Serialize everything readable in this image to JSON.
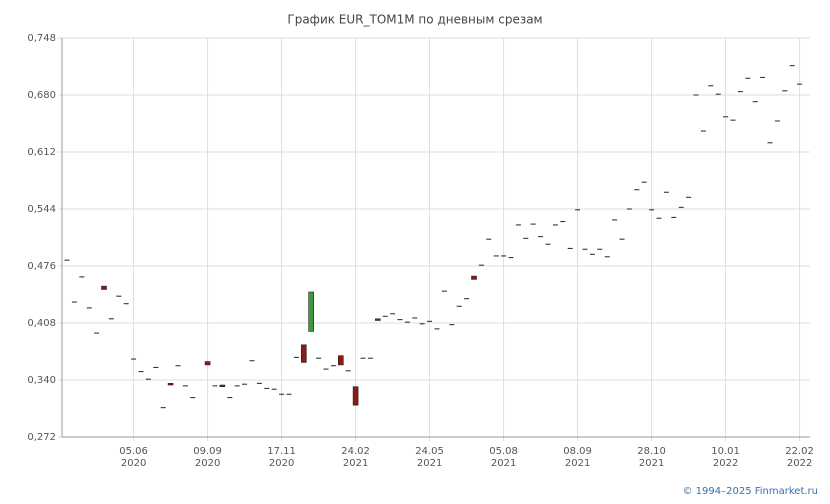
{
  "chart_data": {
    "type": "candlestick",
    "title": "График EUR_TOM1M по дневным срезам",
    "categories": [
      null,
      null,
      null,
      null,
      null,
      null,
      null,
      null,
      null,
      "05.06 2020",
      null,
      null,
      null,
      null,
      null,
      null,
      null,
      null,
      null,
      "09.09 2020",
      null,
      null,
      null,
      null,
      null,
      null,
      null,
      null,
      null,
      "17.11 2020",
      null,
      null,
      null,
      null,
      null,
      null,
      null,
      null,
      null,
      "24.02 2021",
      null,
      null,
      null,
      null,
      null,
      null,
      null,
      null,
      null,
      "24.05 2021",
      null,
      null,
      null,
      null,
      null,
      null,
      null,
      null,
      null,
      "05.08 2021",
      null,
      null,
      null,
      null,
      null,
      null,
      null,
      null,
      null,
      "08.09 2021",
      null,
      null,
      null,
      null,
      null,
      null,
      null,
      null,
      null,
      "28.10 2021",
      null,
      null,
      null,
      null,
      null,
      null,
      null,
      null,
      null,
      "10.01 2022",
      null,
      null,
      null,
      null,
      null,
      null,
      null,
      null,
      null,
      "22.02 2022"
    ],
    "open": [
      0.483,
      0.433,
      0.463,
      0.426,
      0.396,
      0.452,
      0.413,
      0.44,
      0.431,
      0.365,
      0.35,
      0.341,
      0.355,
      0.307,
      0.336,
      0.357,
      0.333,
      0.319,
      null,
      0.362,
      0.333,
      0.334,
      0.319,
      0.333,
      0.335,
      0.363,
      0.336,
      0.33,
      0.329,
      0.323,
      0.323,
      0.367,
      0.382,
      0.398,
      0.366,
      0.353,
      0.357,
      0.369,
      0.351,
      0.332,
      0.366,
      0.366,
      0.413,
      0.416,
      0.419,
      0.412,
      0.409,
      0.414,
      0.407,
      0.41,
      0.401,
      0.446,
      0.406,
      0.428,
      0.437,
      0.464,
      0.477,
      0.508,
      0.488,
      0.488,
      0.486,
      0.525,
      0.509,
      0.526,
      0.511,
      0.502,
      0.525,
      0.529,
      0.497,
      0.543,
      0.496,
      0.49,
      0.496,
      0.487,
      0.531,
      0.508,
      0.544,
      0.567,
      0.576,
      0.543,
      0.533,
      0.564,
      0.534,
      0.546,
      0.558,
      0.68,
      0.637,
      0.691,
      0.681,
      0.654,
      0.65,
      0.684,
      0.7,
      0.672,
      0.701,
      0.623,
      0.649,
      0.685,
      0.715,
      0.693
    ],
    "close": [
      0.483,
      0.433,
      0.463,
      0.426,
      0.396,
      0.448,
      0.413,
      0.44,
      0.431,
      0.365,
      0.35,
      0.341,
      0.355,
      0.307,
      0.334,
      0.357,
      0.333,
      0.319,
      null,
      0.358,
      0.333,
      0.332,
      0.319,
      0.333,
      0.335,
      0.363,
      0.336,
      0.33,
      0.329,
      0.323,
      0.323,
      0.367,
      0.361,
      0.445,
      0.366,
      0.353,
      0.357,
      0.358,
      0.351,
      0.31,
      0.366,
      0.366,
      0.411,
      0.416,
      0.419,
      0.412,
      0.409,
      0.414,
      0.407,
      0.41,
      0.401,
      0.446,
      0.406,
      0.428,
      0.437,
      0.46,
      0.477,
      0.508,
      0.488,
      0.488,
      0.486,
      0.525,
      0.509,
      0.526,
      0.511,
      0.502,
      0.525,
      0.529,
      0.497,
      0.543,
      0.496,
      0.49,
      0.496,
      0.487,
      0.531,
      0.508,
      0.544,
      0.567,
      0.576,
      0.543,
      0.533,
      0.564,
      0.534,
      0.546,
      0.558,
      0.68,
      0.637,
      0.691,
      0.681,
      0.654,
      0.65,
      0.684,
      0.7,
      0.672,
      0.701,
      0.623,
      0.649,
      0.685,
      0.715,
      0.693
    ],
    "up_color": "#3a9a3a",
    "down_color": "#8b1a1a",
    "ylim": [
      0.272,
      0.748
    ],
    "yticks": [
      {
        "value": 0.272,
        "label": "0,272"
      },
      {
        "value": 0.34,
        "label": "0,340"
      },
      {
        "value": 0.408,
        "label": "0,408"
      },
      {
        "value": 0.476,
        "label": "0,476"
      },
      {
        "value": 0.544,
        "label": "0,544"
      },
      {
        "value": 0.612,
        "label": "0,612"
      },
      {
        "value": 0.68,
        "label": "0,680"
      },
      {
        "value": 0.748,
        "label": "0,748"
      }
    ],
    "grid": true
  },
  "footer": "© 1994–2025 Finmarket.ru"
}
